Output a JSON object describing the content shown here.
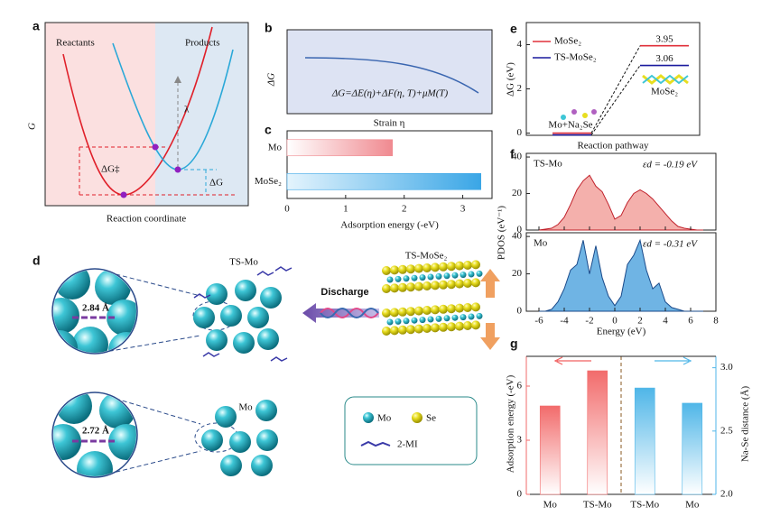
{
  "panel_labels": [
    "a",
    "b",
    "c",
    "d",
    "e",
    "f",
    "g"
  ],
  "panel_a": {
    "reactants": "Reactants",
    "products": "Products",
    "y_label": "G",
    "x_label": "Reaction coordinate",
    "activation": "ΔG‡",
    "reorganization": "λ",
    "free_energy": "ΔG"
  },
  "panel_b": {
    "y_label": "ΔG",
    "x_label": "Strain η",
    "equation": "ΔG=ΔE(η)+ΔF(η, T)+μM(T)"
  },
  "panel_d": {
    "ts_mo": "TS-Mo",
    "ts_mose2": "TS-MoSe₂",
    "discharge": "Discharge",
    "mo": "Mo",
    "ts_mo_distance": "2.84 Å",
    "mo_distance": "2.72 Å",
    "legend": [
      "Mo",
      "Se",
      "2-MI"
    ]
  },
  "chart_data": [
    {
      "type": "bar",
      "orientation": "horizontal",
      "categories": [
        "Mo",
        "MoSe₂"
      ],
      "values": [
        1.8,
        3.31
      ],
      "colors": [
        "#f08a90",
        "#3aa6e6"
      ],
      "xlim": [
        0,
        3.5
      ],
      "xticks": [
        0,
        1,
        2,
        3
      ],
      "x_label": "Adsorption energy (-eV)"
    },
    {
      "type": "energy_levels",
      "categories": [
        "Mo+Na₂Se",
        "MoSe₂"
      ],
      "series": [
        {
          "name": "MoSe₂",
          "color": "#e0303a",
          "values": [
            0,
            3.95
          ]
        },
        {
          "name": "TS-MoSe₂",
          "color": "#1a1a9e",
          "values": [
            0,
            3.06
          ]
        }
      ],
      "ylim": [
        -0.1,
        5
      ],
      "yticks": [
        0,
        2,
        4
      ],
      "x_label": "Reaction pathway",
      "y_label": "ΔG (eV)"
    },
    {
      "type": "area",
      "x": [
        -6,
        -5.5,
        -5,
        -4.5,
        -4,
        -3.5,
        -3,
        -2.5,
        -2,
        -1.5,
        -1,
        -0.5,
        0,
        0.5,
        1,
        1.5,
        2,
        2.5,
        3,
        3.5,
        4,
        4.5,
        5,
        5.5,
        6,
        6.5,
        7
      ],
      "series": [
        {
          "name": "TS-Mo",
          "color": "#c0202a",
          "fill": "#f4b0ac",
          "annotation": "εd = -0.19 eV",
          "values": [
            0,
            0.5,
            1,
            3,
            7,
            14,
            22,
            27,
            30,
            24,
            21,
            14,
            6,
            8,
            15,
            20,
            22,
            20,
            17,
            13,
            9,
            5,
            2,
            1,
            0.5,
            0,
            0
          ]
        },
        {
          "name": "Mo",
          "color": "#1a4a8a",
          "fill": "#6fb4e4",
          "annotation": "εd = -0.31 eV",
          "values": [
            0,
            0,
            1,
            5,
            12,
            22,
            25,
            38,
            20,
            35,
            18,
            8,
            3,
            8,
            25,
            30,
            38,
            22,
            12,
            15,
            5,
            2,
            1,
            0,
            0,
            0,
            0
          ]
        }
      ],
      "xlim": [
        -7,
        8
      ],
      "xticks": [
        -6,
        -4,
        -2,
        0,
        2,
        4,
        6,
        8
      ],
      "ylim": [
        0,
        42
      ],
      "yticks": [
        0,
        20,
        40
      ],
      "x_label": "Energy (eV)",
      "y_label": "PDOS (eV⁻¹)"
    },
    {
      "type": "bar",
      "orientation": "vertical",
      "categories": [
        "Mo",
        "TS-Mo",
        "TS-Mo",
        "Mo"
      ],
      "series": [
        {
          "color": "#f26b6b",
          "values": [
            4.9,
            6.85,
            null,
            null
          ]
        },
        {
          "color": "#4fb6e8",
          "axis": "y2",
          "values": [
            null,
            null,
            2.84,
            2.72
          ]
        }
      ],
      "ylim": [
        0,
        7.65
      ],
      "yticks": [
        0,
        3,
        6
      ],
      "y2lim": [
        2,
        3.09
      ],
      "y2ticks": [
        {
          "value": 2,
          "label": "2.0"
        },
        2.5,
        {
          "value": 3,
          "label": "3.0"
        }
      ],
      "y_label": "Adsorption energy (-eV)",
      "y2_label": "Na-Se distance (Å)"
    }
  ]
}
